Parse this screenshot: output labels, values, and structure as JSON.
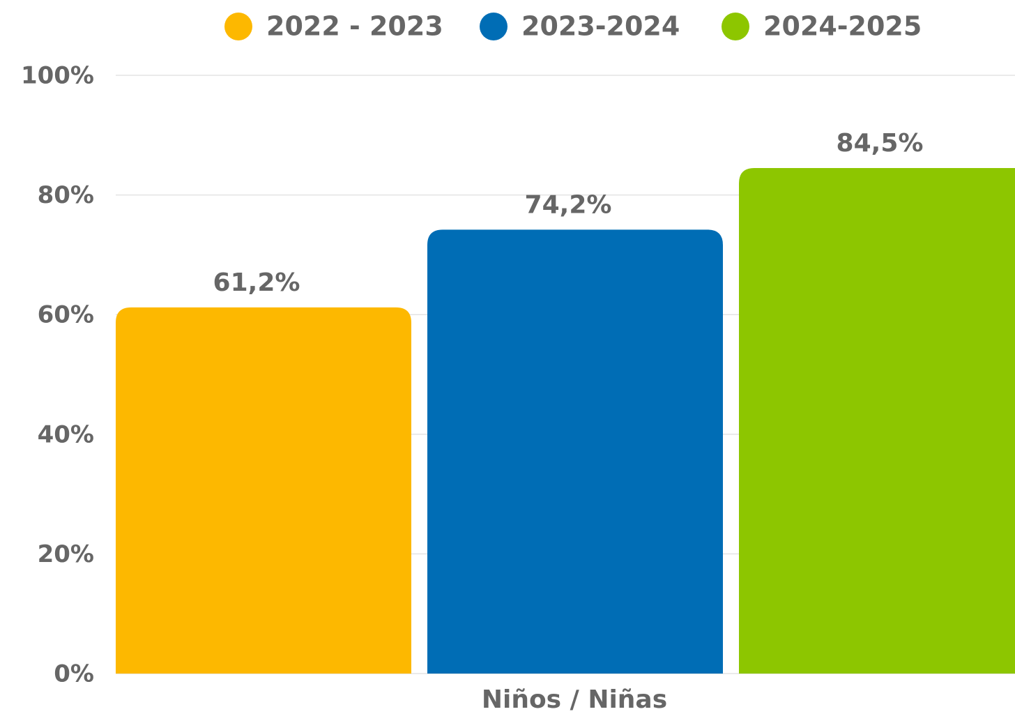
{
  "chart_data": {
    "type": "bar",
    "categories": [
      "Niños / Niñas"
    ],
    "series": [
      {
        "name": "2022 - 2023",
        "color": "#fdb800",
        "values": [
          61.2
        ],
        "value_labels": [
          "61,2%"
        ]
      },
      {
        "name": "2023-2024",
        "color": "#006db5",
        "values": [
          74.2
        ],
        "value_labels": [
          "74,2%"
        ]
      },
      {
        "name": "2024-2025",
        "color": "#8dc600",
        "values": [
          84.5
        ],
        "value_labels": [
          "84,5%"
        ]
      }
    ],
    "ylim": [
      0,
      100
    ],
    "yticks": [
      {
        "value": 0,
        "label": "0%"
      },
      {
        "value": 20,
        "label": "20%"
      },
      {
        "value": 40,
        "label": "40%"
      },
      {
        "value": 60,
        "label": "60%"
      },
      {
        "value": 80,
        "label": "80%"
      },
      {
        "value": 100,
        "label": "100%"
      }
    ],
    "grid": true,
    "legend": "top"
  }
}
